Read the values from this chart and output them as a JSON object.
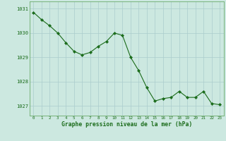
{
  "x": [
    0,
    1,
    2,
    3,
    4,
    5,
    6,
    7,
    8,
    9,
    10,
    11,
    12,
    13,
    14,
    15,
    16,
    17,
    18,
    19,
    20,
    21,
    22,
    23
  ],
  "y": [
    1030.85,
    1030.55,
    1030.3,
    1030.0,
    1029.6,
    1029.25,
    1029.1,
    1029.2,
    1029.45,
    1029.65,
    1030.0,
    1029.9,
    1029.0,
    1028.45,
    1027.75,
    1027.2,
    1027.3,
    1027.35,
    1027.6,
    1027.35,
    1027.35,
    1027.6,
    1027.1,
    1027.05
  ],
  "line_color": "#1a6b1a",
  "marker_color": "#1a6b1a",
  "bg_color": "#cce8e0",
  "grid_color": "#aacccc",
  "xlabel": "Graphe pression niveau de la mer (hPa)",
  "xlabel_color": "#1a6b1a",
  "ylabel_ticks": [
    1027,
    1028,
    1029,
    1030,
    1031
  ],
  "xtick_labels": [
    "0",
    "1",
    "2",
    "3",
    "4",
    "5",
    "6",
    "7",
    "8",
    "9",
    "10",
    "11",
    "12",
    "13",
    "14",
    "15",
    "16",
    "17",
    "18",
    "19",
    "20",
    "21",
    "22",
    "23"
  ],
  "ylim": [
    1026.6,
    1031.3
  ],
  "xlim": [
    -0.5,
    23.5
  ],
  "tick_color": "#1a6b1a",
  "spine_color": "#6aaa6a"
}
